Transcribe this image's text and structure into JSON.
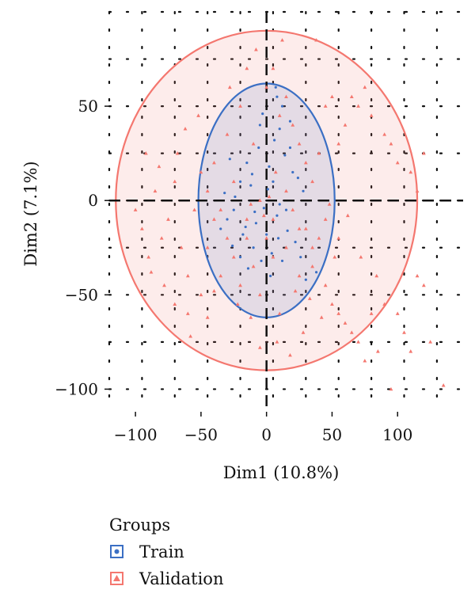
{
  "chart_data": {
    "type": "scatter",
    "xlabel": "Dim1 (10.8%)",
    "ylabel": "Dim2 (7.1%)",
    "xlim": [
      -120,
      150
    ],
    "ylim": [
      -112,
      100
    ],
    "x_ticks": [
      -100,
      -50,
      0,
      50,
      100
    ],
    "y_ticks": [
      -100,
      -50,
      0,
      50
    ],
    "x_tick_labels": [
      "−100",
      "−50",
      "0",
      "50",
      "100"
    ],
    "y_tick_labels": [
      "−100",
      "−50",
      "0",
      "50"
    ],
    "grid": "dotted",
    "legend": {
      "title": "Groups",
      "position": "bottom-left",
      "entries": [
        "Train",
        "Validation"
      ]
    },
    "colors": {
      "Train": "#3b6fc4",
      "Validation": "#f4776f"
    },
    "ellipses": [
      {
        "group": "Train",
        "cx": 0,
        "cy": 0,
        "rx": 52,
        "ry": 62
      },
      {
        "group": "Validation",
        "cx": 0,
        "cy": 0,
        "rx": 115,
        "ry": 90
      }
    ],
    "series": [
      {
        "name": "Train",
        "marker": "dot",
        "points": [
          [
            -5,
            40
          ],
          [
            8,
            55
          ],
          [
            12,
            50
          ],
          [
            -15,
            20
          ],
          [
            -25,
            -5
          ],
          [
            -30,
            -10
          ],
          [
            10,
            38
          ],
          [
            -10,
            -25
          ],
          [
            5,
            10
          ],
          [
            15,
            -5
          ],
          [
            -20,
            -30
          ],
          [
            -8,
            -12
          ],
          [
            20,
            15
          ],
          [
            -35,
            -15
          ],
          [
            3,
            -40
          ],
          [
            -12,
            8
          ],
          [
            18,
            42
          ],
          [
            0,
            -18
          ],
          [
            -28,
            22
          ],
          [
            22,
            -22
          ],
          [
            8,
            -8
          ],
          [
            -6,
            28
          ],
          [
            12,
            -32
          ],
          [
            -18,
            -18
          ],
          [
            28,
            5
          ],
          [
            -3,
            46
          ],
          [
            6,
            32
          ],
          [
            16,
            -16
          ],
          [
            -24,
            2
          ],
          [
            2,
            18
          ],
          [
            10,
            -2
          ],
          [
            -14,
            -36
          ],
          [
            26,
            -30
          ],
          [
            -32,
            4
          ],
          [
            14,
            24
          ],
          [
            -9,
            -6
          ],
          [
            4,
            -28
          ],
          [
            -20,
            10
          ],
          [
            30,
            -42
          ],
          [
            7,
            60
          ],
          [
            -2,
            -4
          ],
          [
            18,
            28
          ],
          [
            -16,
            -14
          ],
          [
            9,
            -20
          ],
          [
            -26,
            -24
          ],
          [
            24,
            12
          ],
          [
            1,
            6
          ],
          [
            -4,
            -32
          ],
          [
            38,
            -38
          ],
          [
            -11,
            14
          ]
        ]
      },
      {
        "name": "Validation",
        "marker": "triangle",
        "points": [
          [
            -80,
            -20
          ],
          [
            -90,
            -30
          ],
          [
            -70,
            10
          ],
          [
            -60,
            -40
          ],
          [
            -75,
            -10
          ],
          [
            -85,
            5
          ],
          [
            -65,
            -25
          ],
          [
            -55,
            -5
          ],
          [
            -95,
            -15
          ],
          [
            -70,
            -55
          ],
          [
            -60,
            -60
          ],
          [
            -50,
            -50
          ],
          [
            -40,
            -10
          ],
          [
            -45,
            -25
          ],
          [
            -35,
            -40
          ],
          [
            -30,
            -20
          ],
          [
            -25,
            -30
          ],
          [
            -20,
            -45
          ],
          [
            -15,
            -10
          ],
          [
            -10,
            -35
          ],
          [
            -5,
            -50
          ],
          [
            0,
            -20
          ],
          [
            5,
            -30
          ],
          [
            10,
            -60
          ],
          [
            15,
            -25
          ],
          [
            20,
            -5
          ],
          [
            25,
            -40
          ],
          [
            30,
            -15
          ],
          [
            35,
            -35
          ],
          [
            40,
            -20
          ],
          [
            45,
            -45
          ],
          [
            50,
            -55
          ],
          [
            55,
            -60
          ],
          [
            60,
            -65
          ],
          [
            65,
            -70
          ],
          [
            70,
            -75
          ],
          [
            80,
            -60
          ],
          [
            90,
            -55
          ],
          [
            100,
            -60
          ],
          [
            105,
            -70
          ],
          [
            115,
            -40
          ],
          [
            120,
            -45
          ],
          [
            125,
            -75
          ],
          [
            95,
            -100
          ],
          [
            135,
            -98
          ],
          [
            110,
            -80
          ],
          [
            85,
            -80
          ],
          [
            75,
            -85
          ],
          [
            -40,
            20
          ],
          [
            -30,
            35
          ],
          [
            -20,
            50
          ],
          [
            -10,
            30
          ],
          [
            0,
            60
          ],
          [
            5,
            70
          ],
          [
            10,
            45
          ],
          [
            15,
            55
          ],
          [
            20,
            40
          ],
          [
            25,
            30
          ],
          [
            30,
            20
          ],
          [
            35,
            10
          ],
          [
            40,
            25
          ],
          [
            45,
            50
          ],
          [
            50,
            55
          ],
          [
            55,
            30
          ],
          [
            60,
            40
          ],
          [
            65,
            55
          ],
          [
            70,
            50
          ],
          [
            75,
            60
          ],
          [
            80,
            45
          ],
          [
            90,
            35
          ],
          [
            95,
            30
          ],
          [
            100,
            20
          ],
          [
            110,
            15
          ],
          [
            -50,
            15
          ],
          [
            -45,
            5
          ],
          [
            -35,
            -5
          ],
          [
            -25,
            10
          ],
          [
            -15,
            -20
          ],
          [
            -5,
            0
          ],
          [
            5,
            -10
          ],
          [
            15,
            5
          ],
          [
            25,
            -15
          ],
          [
            35,
            -25
          ],
          [
            45,
            -10
          ],
          [
            55,
            -20
          ],
          [
            -8,
            80
          ],
          [
            12,
            85
          ],
          [
            38,
            85
          ],
          [
            -15,
            70
          ],
          [
            -28,
            60
          ],
          [
            -52,
            45
          ],
          [
            -62,
            38
          ],
          [
            48,
            -2
          ],
          [
            62,
            -8
          ],
          [
            72,
            -30
          ],
          [
            84,
            -40
          ],
          [
            -100,
            -5
          ],
          [
            -88,
            -38
          ],
          [
            -78,
            -45
          ],
          [
            -58,
            -72
          ],
          [
            -45,
            -62
          ],
          [
            -12,
            -62
          ],
          [
            8,
            -75
          ],
          [
            28,
            -70
          ],
          [
            42,
            -62
          ],
          [
            18,
            -82
          ],
          [
            -5,
            -78
          ],
          [
            115,
            5
          ],
          [
            120,
            25
          ],
          [
            -68,
            25
          ],
          [
            -82,
            18
          ],
          [
            -92,
            25
          ],
          [
            -40,
            -48
          ],
          [
            -22,
            -55
          ],
          [
            33,
            -52
          ],
          [
            52,
            -30
          ],
          [
            2,
            2
          ],
          [
            -2,
            -8
          ],
          [
            7,
            15
          ],
          [
            -12,
            -2
          ],
          [
            22,
            -48
          ]
        ]
      }
    ]
  }
}
